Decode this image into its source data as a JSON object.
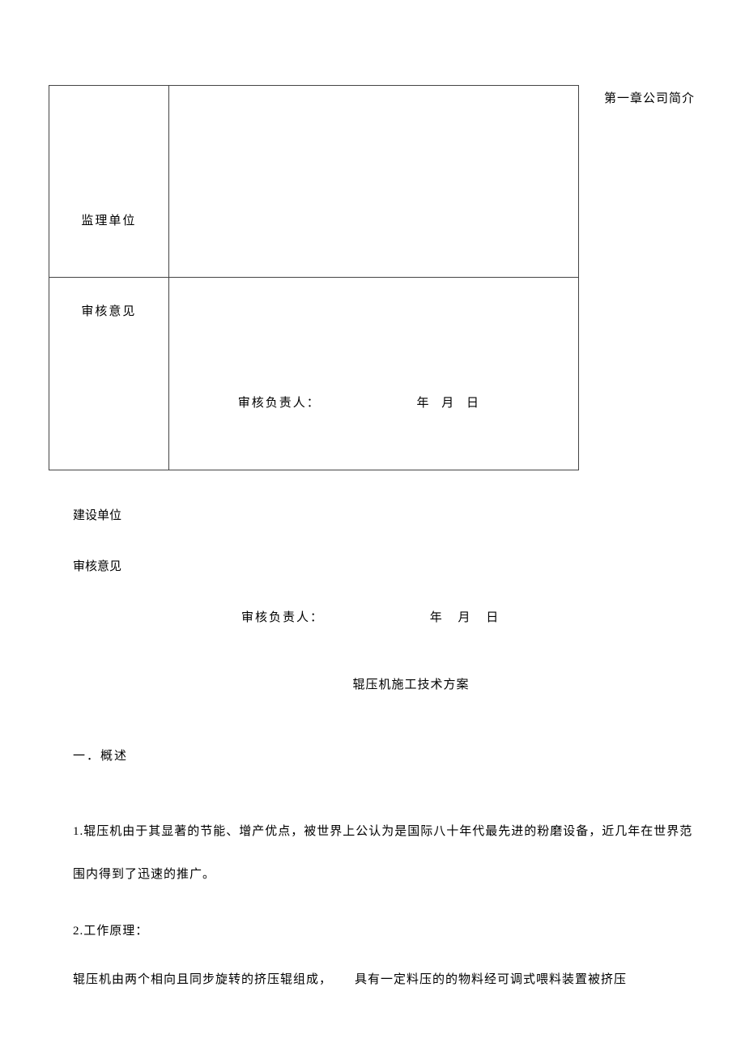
{
  "side_note": "第一章公司简介",
  "table": {
    "row1_label": "监理单位",
    "row2_label": "审核意见",
    "sig_label": "审核负责人：",
    "date_text": "年 月 日"
  },
  "below_table": {
    "unit_label": "建设单位",
    "opinion_label": "审核意见",
    "sig_label": "审核负责人：",
    "date_text": "年  月  日"
  },
  "doc_title": "辊压机施工技术方案",
  "section1": "一．概述",
  "para1": "1.辊压机由于其显著的节能、增产优点，被世界上公认为是国际八十年代最先进的粉磨设备，近几年在世界范围内得到了迅速的推广。",
  "para2": "2.工作原理：",
  "para3_a": "辊压机由两个相向且同步旋转的挤压辊组成，",
  "para3_b": "具有一定料压的的物料经可调式喂料装置被挤压"
}
